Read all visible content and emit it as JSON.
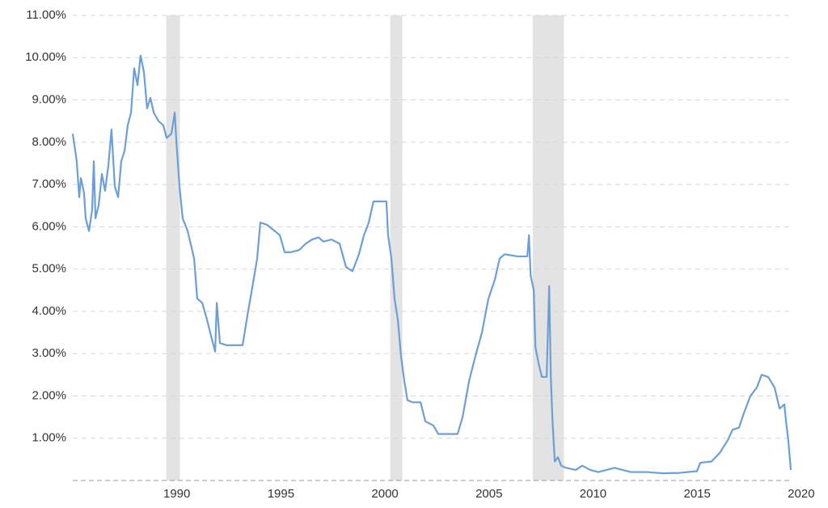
{
  "chart_data": {
    "type": "line",
    "xlim": [
      1985,
      2019.5
    ],
    "xticks": [
      1990,
      1995,
      2000,
      2005,
      2010,
      2015,
      2020
    ],
    "ylim": [
      0,
      11
    ],
    "yticks": [
      {
        "value": 1,
        "label": "1.00%"
      },
      {
        "value": 2,
        "label": "2.00%"
      },
      {
        "value": 3,
        "label": "3.00%"
      },
      {
        "value": 4,
        "label": "4.00%"
      },
      {
        "value": 5,
        "label": "5.00%"
      },
      {
        "value": 6,
        "label": "6.00%"
      },
      {
        "value": 7,
        "label": "7.00%"
      },
      {
        "value": 8,
        "label": "8.00%"
      },
      {
        "value": 9,
        "label": "9.00%"
      },
      {
        "value": 10,
        "label": "10.00%"
      },
      {
        "value": 11,
        "label": "11.00%"
      }
    ],
    "grid": true,
    "recessions": [
      [
        1989.49,
        1990.15
      ],
      [
        2000.25,
        2000.84
      ],
      [
        2007.1,
        2008.6
      ]
    ],
    "recession_color": "#e3e3e3",
    "series": [
      {
        "color": "#6b9fd6",
        "x": [
          1985.0,
          1985.19,
          1985.31,
          1985.39,
          1985.54,
          1985.62,
          1985.78,
          1985.93,
          1986.01,
          1986.09,
          1986.24,
          1986.4,
          1986.55,
          1986.71,
          1986.86,
          1987.02,
          1987.18,
          1987.33,
          1987.49,
          1987.64,
          1987.8,
          1987.95,
          1988.11,
          1988.26,
          1988.42,
          1988.57,
          1988.73,
          1988.89,
          1989.12,
          1989.35,
          1989.51,
          1989.74,
          1989.9,
          1989.98,
          1990.13,
          1990.28,
          1990.52,
          1990.83,
          1990.98,
          1991.22,
          1991.45,
          1991.68,
          1991.84,
          1991.92,
          1992.07,
          1992.38,
          1992.77,
          1993.16,
          1993.39,
          1993.62,
          1993.86,
          1994.01,
          1994.32,
          1994.71,
          1994.95,
          1995.18,
          1995.49,
          1995.88,
          1996.19,
          1996.5,
          1996.81,
          1997.04,
          1997.43,
          1997.82,
          1998.13,
          1998.44,
          1998.75,
          1998.99,
          1999.22,
          1999.45,
          1999.76,
          2000.07,
          2000.15,
          2000.31,
          2000.46,
          2000.62,
          2000.77,
          2000.93,
          2001.08,
          2001.32,
          2001.71,
          2001.94,
          2002.33,
          2002.56,
          2002.95,
          2003.49,
          2003.73,
          2004.04,
          2004.35,
          2004.66,
          2004.97,
          2005.28,
          2005.51,
          2005.75,
          2006.37,
          2006.84,
          2006.92,
          2007.0,
          2007.15,
          2007.23,
          2007.39,
          2007.54,
          2007.77,
          2007.89,
          2007.97,
          2008.05,
          2008.16,
          2008.31,
          2008.47,
          2008.7,
          2009.17,
          2009.48,
          2009.86,
          2010.25,
          2011.03,
          2011.81,
          2012.58,
          2013.36,
          2014.14,
          2014.99,
          2015.15,
          2015.69,
          2016.08,
          2016.47,
          2016.7,
          2017.01,
          2017.25,
          2017.56,
          2017.87,
          2018.1,
          2018.41,
          2018.72,
          2018.96,
          2019.19,
          2019.27,
          2019.38,
          2019.5
        ],
        "values": [
          8.2,
          7.55,
          6.7,
          7.15,
          6.8,
          6.2,
          5.9,
          6.4,
          7.55,
          6.2,
          6.5,
          7.25,
          6.85,
          7.45,
          8.3,
          6.95,
          6.7,
          7.55,
          7.8,
          8.4,
          8.7,
          9.75,
          9.35,
          10.05,
          9.65,
          8.8,
          9.05,
          8.7,
          8.5,
          8.4,
          8.1,
          8.2,
          8.7,
          8.0,
          6.95,
          6.2,
          5.9,
          5.25,
          4.3,
          4.2,
          3.8,
          3.35,
          3.05,
          4.2,
          3.25,
          3.2,
          3.2,
          3.2,
          3.9,
          4.55,
          5.25,
          6.1,
          6.05,
          5.9,
          5.8,
          5.4,
          5.4,
          5.45,
          5.6,
          5.7,
          5.75,
          5.65,
          5.7,
          5.6,
          5.05,
          4.95,
          5.35,
          5.8,
          6.1,
          6.6,
          6.6,
          6.6,
          5.8,
          5.25,
          4.3,
          3.8,
          2.95,
          2.35,
          1.9,
          1.85,
          1.85,
          1.4,
          1.3,
          1.1,
          1.1,
          1.1,
          1.5,
          2.35,
          2.95,
          3.5,
          4.3,
          4.75,
          5.25,
          5.35,
          5.3,
          5.3,
          5.8,
          4.85,
          4.5,
          3.15,
          2.75,
          2.45,
          2.45,
          4.6,
          2.45,
          1.4,
          0.45,
          0.55,
          0.35,
          0.3,
          0.25,
          0.35,
          0.25,
          0.2,
          0.3,
          0.2,
          0.2,
          0.17,
          0.18,
          0.22,
          0.42,
          0.45,
          0.65,
          0.95,
          1.2,
          1.25,
          1.6,
          2.0,
          2.2,
          2.5,
          2.45,
          2.2,
          1.7,
          1.8,
          1.4,
          0.95,
          0.25
        ]
      }
    ]
  }
}
